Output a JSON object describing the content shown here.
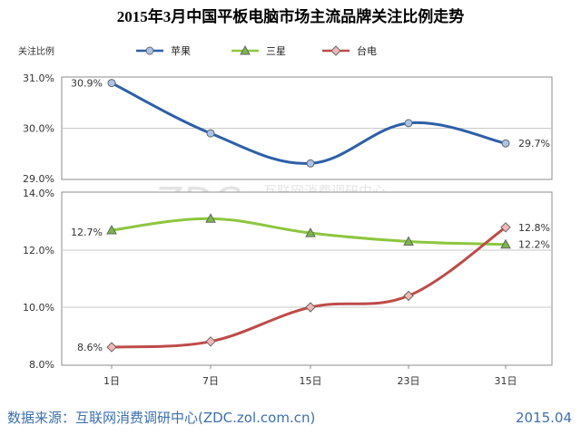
{
  "chart_data": {
    "type": "line",
    "title": "2015年3月中国平板电脑市场主流品牌关注比例走势",
    "ylabel": "关注比例",
    "categories": [
      "1日",
      "7日",
      "15日",
      "23日",
      "31日"
    ],
    "legend_position": "top",
    "grid": true,
    "panels": [
      {
        "ylim": [
          29.0,
          31.0
        ],
        "yticks": [
          "31.0%",
          "30.0%",
          "29.0%"
        ],
        "series": [
          {
            "name": "苹果",
            "color": "#2E5FA8",
            "marker_color": "#A9C4E8",
            "marker": "circle",
            "values": [
              30.9,
              29.9,
              29.3,
              30.1,
              29.7
            ],
            "point_labels": [
              "30.9%",
              "",
              "",
              "",
              "29.7%"
            ]
          }
        ]
      },
      {
        "ylim": [
          8.0,
          14.0
        ],
        "yticks": [
          "14.0%",
          "12.0%",
          "10.0%",
          "8.0%"
        ],
        "series": [
          {
            "name": "三星",
            "color": "#8DC63F",
            "marker_color": "#7AB648",
            "marker": "triangle",
            "values": [
              12.7,
              13.1,
              12.6,
              12.3,
              12.2
            ],
            "point_labels": [
              "12.7%",
              "",
              "",
              "",
              "12.2%"
            ]
          },
          {
            "name": "台电",
            "color": "#BE4B48",
            "marker_color": "#F2B8B6",
            "marker": "diamond",
            "values": [
              8.6,
              8.8,
              10.0,
              10.4,
              12.8
            ],
            "point_labels": [
              "8.6%",
              "",
              "",
              "",
              "12.8%"
            ]
          }
        ]
      }
    ]
  },
  "watermark": {
    "brand": "ZDC",
    "name": "互联网消费调研中心",
    "url": "zdc.zol.com.cn"
  },
  "footer": {
    "source": "数据来源：互联网消费调研中心(ZDC.zol.com.cn)",
    "date": "2015.04"
  }
}
